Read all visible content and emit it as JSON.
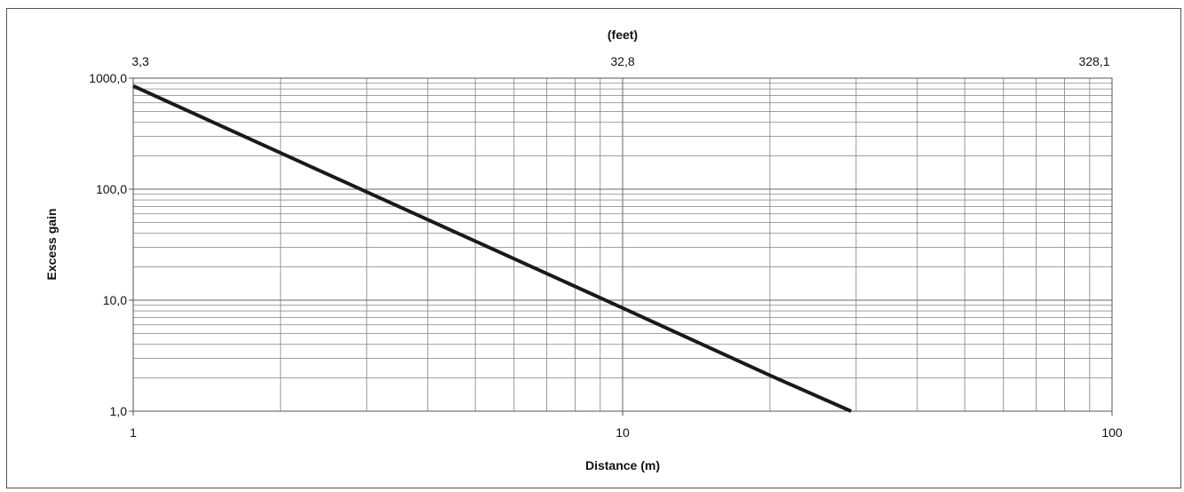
{
  "chart_data": {
    "type": "line",
    "xlabel": "Distance (m)",
    "ylabel": "Excess gain",
    "top_axis_label": "(feet)",
    "x_scale": "log",
    "y_scale": "log",
    "xlim": [
      1,
      100
    ],
    "ylim": [
      1,
      1000
    ],
    "x_tick_labels": [
      "1",
      "10",
      "100"
    ],
    "y_tick_labels": [
      "1,0",
      "10,0",
      "100,0",
      "1000,0"
    ],
    "top_tick_labels": [
      "3,3",
      "32,8",
      "328,1"
    ],
    "grid": true,
    "legend": "none",
    "series": [
      {
        "x": [
          1,
          2,
          5,
          10,
          20,
          29.3
        ],
        "y": [
          850,
          212,
          34,
          8.5,
          2.1,
          1.0
        ]
      }
    ],
    "colors": {
      "line": "#1a1a1a",
      "grid": "#808080",
      "axis": "#555555"
    }
  }
}
